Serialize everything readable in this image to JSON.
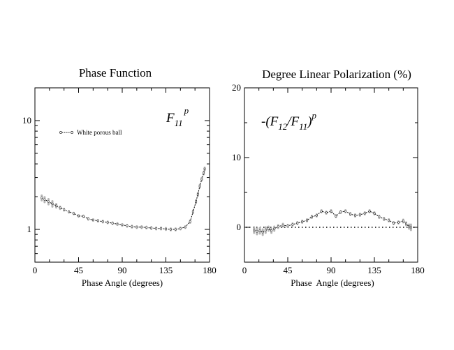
{
  "chart_data": [
    {
      "id": "phase",
      "type": "line",
      "title": "Phase Function",
      "xlabel": "Phase Angle (degrees)",
      "ylabel": "",
      "yscale": "log",
      "xlim": [
        0,
        180
      ],
      "ylim": [
        0.5,
        20
      ],
      "xticks": [
        "0",
        "45",
        "90",
        "135",
        "180"
      ],
      "yticks": [
        "1",
        "10"
      ],
      "annotation": {
        "main": "F",
        "sub": "11",
        "sup": "p"
      },
      "series": [
        {
          "name": "White porous ball",
          "x": [
            7,
            10,
            14,
            18,
            22,
            26,
            30,
            35,
            40,
            45,
            50,
            55,
            60,
            65,
            70,
            75,
            80,
            85,
            90,
            95,
            100,
            105,
            110,
            115,
            120,
            125,
            130,
            135,
            140,
            145,
            150,
            155,
            160,
            163,
            166,
            168,
            170,
            172,
            174,
            175
          ],
          "y": [
            1.95,
            1.88,
            1.8,
            1.72,
            1.65,
            1.58,
            1.52,
            1.45,
            1.4,
            1.33,
            1.32,
            1.25,
            1.22,
            1.2,
            1.18,
            1.16,
            1.14,
            1.12,
            1.1,
            1.08,
            1.06,
            1.05,
            1.05,
            1.04,
            1.03,
            1.02,
            1.02,
            1.01,
            1.0,
            1.0,
            1.02,
            1.05,
            1.18,
            1.45,
            1.8,
            2.1,
            2.5,
            2.9,
            3.3,
            3.6
          ],
          "error": [
            0.1,
            0.1,
            0.1,
            0.1,
            0.06,
            0.04,
            0.03,
            0.02,
            0.02,
            0.02,
            0.02,
            0.02,
            0.02,
            0.02,
            0.02,
            0.02,
            0.02,
            0.02,
            0.02,
            0.02,
            0.02,
            0.02,
            0.02,
            0.02,
            0.02,
            0.02,
            0.02,
            0.02,
            0.02,
            0.02,
            0.02,
            0.02,
            0.03,
            0.04,
            0.05,
            0.06,
            0.07,
            0.08,
            0.09,
            0.1
          ]
        }
      ]
    },
    {
      "id": "polar",
      "type": "line",
      "title": "Degree Linear Polarization (%)",
      "xlabel": "Phase  Angle (degrees)",
      "ylabel": "",
      "xlim": [
        0,
        180
      ],
      "ylim": [
        -5,
        20
      ],
      "xticks": [
        "0",
        "45",
        "90",
        "135",
        "180"
      ],
      "yticks": [
        "0",
        "10",
        "20"
      ],
      "annotation": {
        "main": "-(F",
        "sub1": "12",
        "mid": "/F",
        "sub2": "11",
        "close": ")",
        "sup": "p"
      },
      "reference_line": {
        "y": 0,
        "style": "dotted"
      },
      "series": [
        {
          "name": "",
          "x": [
            10,
            13,
            16,
            19,
            22,
            25,
            28,
            31,
            35,
            40,
            45,
            50,
            55,
            60,
            65,
            70,
            75,
            80,
            85,
            90,
            95,
            100,
            105,
            110,
            115,
            120,
            125,
            130,
            135,
            140,
            145,
            150,
            155,
            160,
            165,
            168,
            171,
            173
          ],
          "y": [
            -0.4,
            -0.6,
            -0.5,
            -0.7,
            -0.4,
            -0.2,
            -0.5,
            -0.2,
            0.1,
            0.3,
            0.2,
            0.4,
            0.6,
            0.8,
            1.0,
            1.5,
            1.7,
            2.3,
            2.1,
            2.3,
            1.6,
            2.2,
            2.3,
            1.9,
            1.7,
            1.8,
            2.0,
            2.3,
            2.0,
            1.5,
            1.2,
            1.0,
            0.6,
            0.7,
            0.9,
            0.5,
            0.1,
            0.0
          ],
          "error": [
            0.4,
            0.4,
            0.4,
            0.4,
            0.4,
            0.3,
            0.3,
            0.3,
            0.2,
            0.2,
            0.15,
            0.15,
            0.15,
            0.15,
            0.15,
            0.15,
            0.15,
            0.15,
            0.15,
            0.15,
            0.15,
            0.15,
            0.15,
            0.15,
            0.15,
            0.15,
            0.15,
            0.15,
            0.15,
            0.15,
            0.15,
            0.15,
            0.15,
            0.15,
            0.2,
            0.2,
            0.3,
            0.4
          ]
        }
      ]
    }
  ]
}
